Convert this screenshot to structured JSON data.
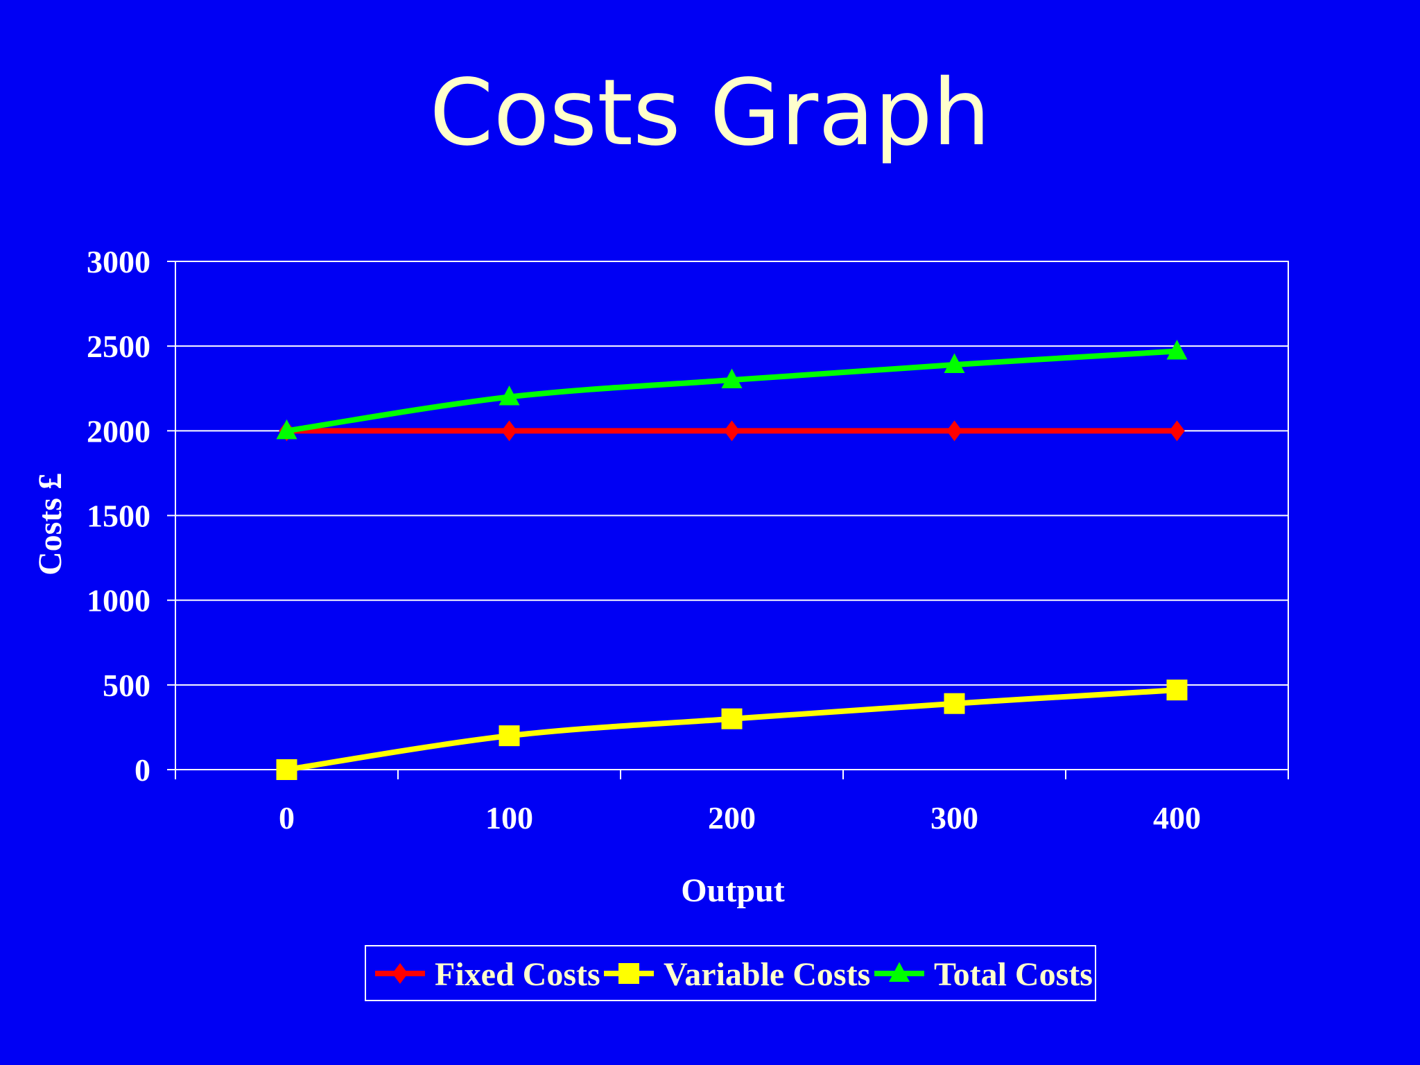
{
  "slide": {
    "title": "Costs Graph"
  },
  "chart_data": {
    "type": "line",
    "title": "",
    "xlabel": "Output",
    "ylabel": "Costs £",
    "categories": [
      "0",
      "100",
      "200",
      "300",
      "400"
    ],
    "x": [
      0,
      100,
      200,
      300,
      400
    ],
    "ylim": [
      0,
      3000
    ],
    "yticks": [
      0,
      500,
      1000,
      1500,
      2000,
      2500,
      3000
    ],
    "grid": true,
    "legend_position": "bottom",
    "background_color": "#0000F4",
    "series": [
      {
        "name": "Fixed Costs",
        "values": [
          2000,
          2000,
          2000,
          2000,
          2000
        ],
        "color": "#FF0000",
        "marker": "diamond"
      },
      {
        "name": "Variable Costs",
        "values": [
          0,
          200,
          300,
          390,
          470
        ],
        "color": "#FFFF00",
        "marker": "square"
      },
      {
        "name": "Total Costs",
        "values": [
          2000,
          2200,
          2300,
          2390,
          2470
        ],
        "color": "#00FF00",
        "marker": "triangle"
      }
    ]
  }
}
